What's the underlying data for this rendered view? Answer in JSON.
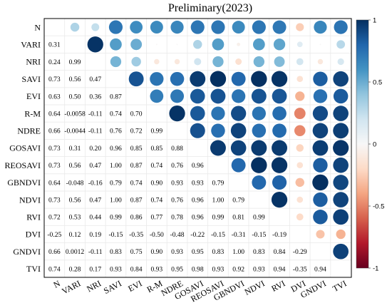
{
  "chart_data": {
    "type": "heatmap",
    "title": "Preliminary(2023)",
    "variables": [
      "N",
      "VARI",
      "NRI",
      "SAVI",
      "EVI",
      "R-M",
      "NDRE",
      "GOSAVI",
      "REOSAVI",
      "GBNDVI",
      "NDVI",
      "RVI",
      "DVI",
      "GNDVI",
      "TVI"
    ],
    "lower_labels": [
      [],
      [
        "0.31"
      ],
      [
        "0.24",
        "0.99"
      ],
      [
        "0.73",
        "0.56",
        "0.47"
      ],
      [
        "0.63",
        "0.50",
        "0.36",
        "0.87"
      ],
      [
        "0.64",
        "-0.0058",
        "-0.11",
        "0.74",
        "0.70"
      ],
      [
        "0.66",
        "-0.0044",
        "-0.11",
        "0.76",
        "0.72",
        "0.99"
      ],
      [
        "0.73",
        "0.31",
        "0.20",
        "0.96",
        "0.85",
        "0.85",
        "0.88"
      ],
      [
        "0.73",
        "0.56",
        "0.47",
        "1.00",
        "0.87",
        "0.74",
        "0.76",
        "0.96"
      ],
      [
        "0.64",
        "-0.048",
        "-0.16",
        "0.79",
        "0.74",
        "0.90",
        "0.93",
        "0.93",
        "0.79"
      ],
      [
        "0.73",
        "0.56",
        "0.47",
        "1.00",
        "0.87",
        "0.74",
        "0.76",
        "0.96",
        "1.00",
        "0.79"
      ],
      [
        "0.72",
        "0.53",
        "0.44",
        "0.99",
        "0.86",
        "0.77",
        "0.78",
        "0.96",
        "0.99",
        "0.81",
        "0.99"
      ],
      [
        "-0.25",
        "0.12",
        "0.19",
        "-0.15",
        "-0.35",
        "-0.50",
        "-0.48",
        "-0.22",
        "-0.15",
        "-0.31",
        "-0.15",
        "-0.19"
      ],
      [
        "0.66",
        "0.0012",
        "-0.11",
        "0.83",
        "0.75",
        "0.90",
        "0.93",
        "0.95",
        "0.83",
        "1.00",
        "0.83",
        "0.84",
        "-0.29"
      ],
      [
        "0.74",
        "0.28",
        "0.17",
        "0.93",
        "0.84",
        "0.93",
        "0.95",
        "0.98",
        "0.93",
        "0.92",
        "0.93",
        "0.94",
        "-0.35",
        "0.94"
      ]
    ],
    "colorbar": {
      "range": [
        -1,
        1
      ],
      "ticks": [
        "1",
        "0.5",
        "0",
        "-0.5",
        "-1"
      ]
    }
  }
}
